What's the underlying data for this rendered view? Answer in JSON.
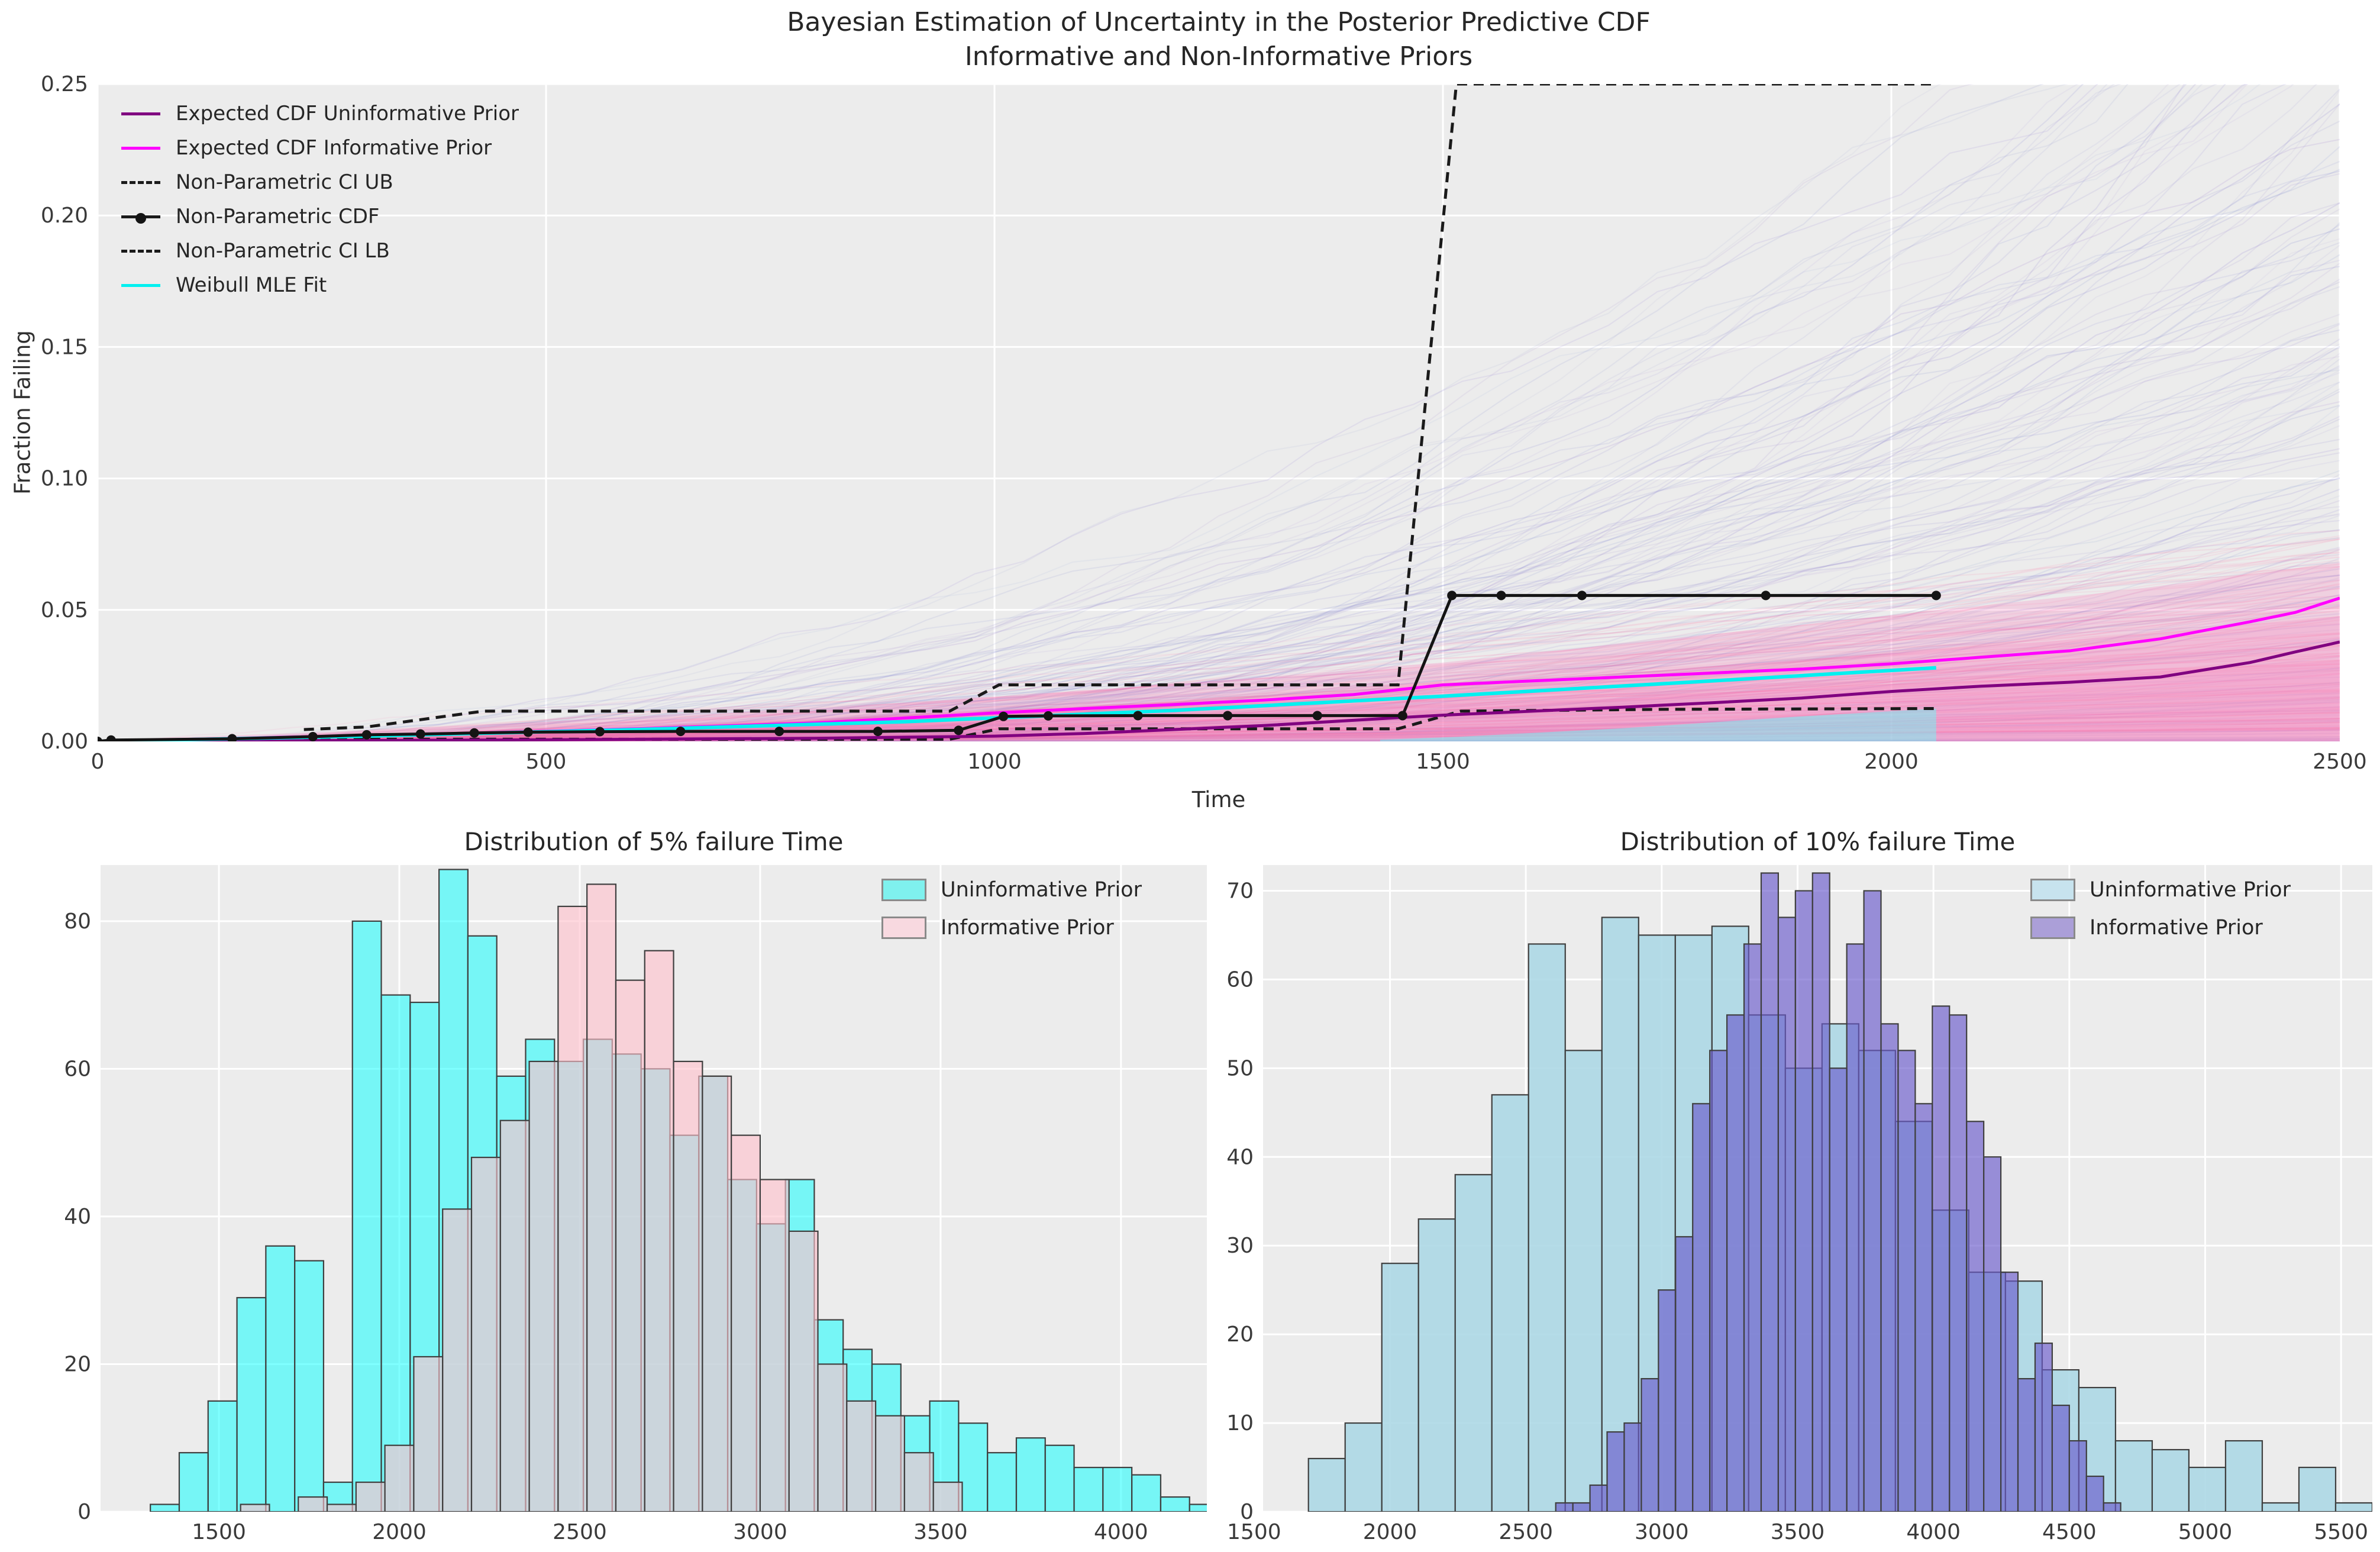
{
  "figure": {
    "background": "#ffffff",
    "axes_background": "#ececec",
    "grid_color": "#ffffff",
    "tick_color": "#3a3a3a",
    "text_color": "#262626"
  },
  "chart_data": [
    {
      "type": "line",
      "title_line1": "Bayesian Estimation of Uncertainty in the Posterior Predictive CDF",
      "title_line2": "Informative and Non-Informative Priors",
      "xlabel": "Time",
      "ylabel": "Fraction Failing",
      "xlim": [
        0,
        2500
      ],
      "ylim": [
        0,
        0.25
      ],
      "xticks": [
        0,
        500,
        1000,
        1500,
        2000,
        2500
      ],
      "yticks": [
        0,
        0.05,
        0.1,
        0.15,
        0.2,
        0.25
      ],
      "ytick_labels": [
        "0.00",
        "0.05",
        "0.10",
        "0.15",
        "0.20",
        "0.25"
      ],
      "grid": true,
      "legend_position": "upper left",
      "legend": [
        {
          "label": "Expected CDF Uninformative Prior",
          "color": "#800080",
          "line": "solid",
          "marker": false
        },
        {
          "label": "Expected CDF Informative Prior",
          "color": "#ff00ff",
          "line": "solid",
          "marker": false
        },
        {
          "label": "Non-Parametric CI UB",
          "color": "#1a1a1a",
          "line": "dashed",
          "marker": false
        },
        {
          "label": "Non-Parametric CDF",
          "color": "#1a1a1a",
          "line": "solid",
          "marker": true
        },
        {
          "label": "Non-Parametric CI LB",
          "color": "#1a1a1a",
          "line": "dashed",
          "marker": false
        },
        {
          "label": "Weibull MLE Fit",
          "color": "#00f0f0",
          "line": "solid",
          "marker": false
        }
      ],
      "series": [
        {
          "name": "Expected CDF Uninformative Prior",
          "color": "#800080",
          "width": 5,
          "points": [
            [
              0,
              0
            ],
            [
              500,
              0.0006
            ],
            [
              800,
              0.0012
            ],
            [
              1000,
              0.002
            ],
            [
              1100,
              0.003
            ],
            [
              1200,
              0.0045
            ],
            [
              1300,
              0.006
            ],
            [
              1400,
              0.008
            ],
            [
              1500,
              0.01
            ],
            [
              1600,
              0.0115
            ],
            [
              1700,
              0.013
            ],
            [
              1800,
              0.0147
            ],
            [
              1900,
              0.0165
            ],
            [
              2000,
              0.019
            ],
            [
              2100,
              0.021
            ],
            [
              2200,
              0.0225
            ],
            [
              2300,
              0.0245
            ],
            [
              2400,
              0.03
            ],
            [
              2450,
              0.034
            ],
            [
              2500,
              0.0378
            ]
          ]
        },
        {
          "name": "Expected CDF Informative Prior",
          "color": "#ff00ff",
          "width": 5,
          "points": [
            [
              0,
              0
            ],
            [
              200,
              0.0015
            ],
            [
              400,
              0.003
            ],
            [
              600,
              0.0048
            ],
            [
              800,
              0.007
            ],
            [
              1000,
              0.0108
            ],
            [
              1100,
              0.0125
            ],
            [
              1200,
              0.014
            ],
            [
              1300,
              0.0157
            ],
            [
              1400,
              0.0178
            ],
            [
              1500,
              0.0215
            ],
            [
              1600,
              0.023
            ],
            [
              1700,
              0.0245
            ],
            [
              1800,
              0.026
            ],
            [
              1900,
              0.0275
            ],
            [
              2000,
              0.0295
            ],
            [
              2100,
              0.032
            ],
            [
              2200,
              0.0345
            ],
            [
              2300,
              0.039
            ],
            [
              2400,
              0.0455
            ],
            [
              2450,
              0.049
            ],
            [
              2500,
              0.0545
            ]
          ]
        },
        {
          "name": "Weibull MLE Fit",
          "color": "#00f0f0",
          "width": 6,
          "points": [
            [
              0,
              0
            ],
            [
              300,
              0.002
            ],
            [
              600,
              0.0045
            ],
            [
              900,
              0.0075
            ],
            [
              1200,
              0.0118
            ],
            [
              1500,
              0.0172
            ],
            [
              1800,
              0.023
            ],
            [
              2050,
              0.028
            ]
          ]
        }
      ],
      "np_cdf": {
        "name": "Non-Parametric CDF",
        "color": "#141414",
        "width": 5,
        "marker_radius": 8,
        "points": [
          [
            0,
            0
          ],
          [
            15,
            0.0005
          ],
          [
            150,
            0.001
          ],
          [
            240,
            0.0018
          ],
          [
            300,
            0.0025
          ],
          [
            360,
            0.0028
          ],
          [
            420,
            0.0032
          ],
          [
            480,
            0.0035
          ],
          [
            560,
            0.0037
          ],
          [
            650,
            0.0038
          ],
          [
            760,
            0.0038
          ],
          [
            870,
            0.0038
          ],
          [
            960,
            0.0042
          ],
          [
            1010,
            0.0095
          ],
          [
            1060,
            0.0097
          ],
          [
            1160,
            0.0098
          ],
          [
            1260,
            0.0098
          ],
          [
            1360,
            0.0098
          ],
          [
            1455,
            0.0098
          ],
          [
            1510,
            0.0555
          ],
          [
            1565,
            0.0555
          ],
          [
            1655,
            0.0555
          ],
          [
            1860,
            0.0555
          ],
          [
            2050,
            0.0555
          ]
        ]
      },
      "ci_ub": {
        "name": "Non-Parametric CI UB",
        "color": "#1a1a1a",
        "width": 5,
        "dash": "17 11",
        "points": [
          [
            230,
            0.0045
          ],
          [
            300,
            0.0055
          ],
          [
            430,
            0.0115
          ],
          [
            950,
            0.0115
          ],
          [
            1005,
            0.0215
          ],
          [
            1450,
            0.0215
          ],
          [
            1515,
            0.25
          ],
          [
            2050,
            0.25
          ]
        ]
      },
      "ci_lb": {
        "name": "Non-Parametric CI LB",
        "color": "#1a1a1a",
        "width": 5,
        "dash": "17 11",
        "points": [
          [
            230,
            0.0008
          ],
          [
            950,
            0.0008
          ],
          [
            1005,
            0.0048
          ],
          [
            1450,
            0.0048
          ],
          [
            1520,
            0.0115
          ],
          [
            1750,
            0.0122
          ],
          [
            2050,
            0.0125
          ]
        ]
      },
      "pink_band": {
        "color": "rgba(247,128,190,0.26)",
        "levels": [
          1,
          0.7,
          0.45
        ],
        "top": [
          [
            0,
            0.0005
          ],
          [
            250,
            0.0035
          ],
          [
            500,
            0.0075
          ],
          [
            750,
            0.0115
          ],
          [
            1000,
            0.017
          ],
          [
            1250,
            0.023
          ],
          [
            1500,
            0.03
          ],
          [
            1750,
            0.039
          ],
          [
            2000,
            0.048
          ],
          [
            2250,
            0.057
          ],
          [
            2500,
            0.068
          ]
        ]
      },
      "cyan_band": {
        "color": "rgba(110,245,245,0.5)",
        "poly": [
          [
            1430,
            0.0006
          ],
          [
            1520,
            0.0018
          ],
          [
            1700,
            0.005
          ],
          [
            1900,
            0.0095
          ],
          [
            2050,
            0.0125
          ],
          [
            2050,
            0
          ],
          [
            1430,
            0
          ]
        ]
      },
      "samples": {
        "seed": 7,
        "uninformative": {
          "count": 185,
          "final_max": 0.34,
          "final_shape": 1.9,
          "k_min": 1.5,
          "k_max": 3.1,
          "t0_min": 60,
          "t0_max": 420,
          "rgb_base": [
            105,
            98,
            205
          ],
          "alpha_min": 0.06,
          "alpha_max": 0.14
        },
        "informative": {
          "count": 115,
          "final_base": 0.004,
          "final_spread": 0.075,
          "final_shape": 1.25,
          "k_min": 1.05,
          "k_max": 2.1,
          "t0_min": 0,
          "t0_max": 220,
          "rgb_base": [
            250,
            92,
            168
          ],
          "alpha_min": 0.06,
          "alpha_max": 0.13
        }
      }
    },
    {
      "type": "bar",
      "variant": "histogram",
      "title": "Distribution of 5% failure Time",
      "xlim": [
        1172,
        4238
      ],
      "ylim": [
        0,
        87.6
      ],
      "xticks": [
        1500,
        2000,
        2500,
        3000,
        3500,
        4000
      ],
      "yticks": [
        0,
        20,
        40,
        60,
        80
      ],
      "grid": true,
      "legend_position": "upper right",
      "legend": [
        {
          "label": "Uninformative Prior",
          "swatch": "#7ff1ee"
        },
        {
          "label": "Informative Prior",
          "swatch": "#f8d9e0"
        }
      ],
      "series": [
        {
          "name": "Uninformative Prior",
          "bin_start": 1310,
          "bin_width": 80,
          "counts": [
            1,
            8,
            15,
            29,
            36,
            34,
            4,
            80,
            70,
            69,
            87,
            78,
            59,
            64,
            61,
            64,
            62,
            60,
            51,
            59,
            45,
            39,
            45,
            26,
            22,
            20,
            13,
            15,
            12,
            8,
            10,
            9,
            6,
            6,
            5,
            2,
            1
          ],
          "fill": "rgba(0,255,255,0.5)",
          "edge": "#3f3f3f"
        },
        {
          "name": "Informative Prior",
          "bin_start": 1560,
          "bin_width": 80,
          "counts": [
            1,
            0,
            2,
            1,
            4,
            9,
            21,
            41,
            48,
            53,
            61,
            82,
            85,
            72,
            76,
            61,
            59,
            51,
            45,
            38,
            20,
            15,
            13,
            8,
            4
          ],
          "fill": "rgba(255,192,203,0.62)",
          "edge": "#3f3f3f"
        }
      ]
    },
    {
      "type": "bar",
      "variant": "histogram",
      "title": "Distribution of 10% failure Time",
      "xlim": [
        1533,
        5615
      ],
      "ylim": [
        0,
        72.9
      ],
      "xticks": [
        1500,
        2000,
        2500,
        3000,
        3500,
        4000,
        4500,
        5000,
        5500
      ],
      "yticks": [
        0,
        10,
        20,
        30,
        40,
        50,
        60,
        70
      ],
      "grid": true,
      "legend_position": "upper right",
      "legend": [
        {
          "label": "Uninformative Prior",
          "swatch": "#c7e3ee"
        },
        {
          "label": "Informative Prior",
          "swatch": "#ab9fd8"
        }
      ],
      "series": [
        {
          "name": "Uninformative Prior",
          "bin_start": 1700,
          "bin_width": 135,
          "counts": [
            6,
            10,
            28,
            33,
            38,
            47,
            64,
            52,
            67,
            65,
            65,
            66,
            56,
            50,
            55,
            52,
            44,
            34,
            27,
            26,
            16,
            14,
            8,
            7,
            5,
            8,
            1,
            5,
            1
          ],
          "fill": "rgba(173,216,230,0.9)",
          "edge": "#3f3f3f"
        },
        {
          "name": "Informative Prior",
          "bin_start": 2610,
          "bin_width": 63,
          "counts": [
            1,
            1,
            3,
            9,
            10,
            15,
            25,
            31,
            46,
            52,
            56,
            64,
            72,
            67,
            70,
            72,
            50,
            64,
            70,
            55,
            52,
            46,
            57,
            56,
            44,
            40,
            27,
            15,
            19,
            12,
            8,
            4,
            1
          ],
          "fill": "rgba(106,90,205,0.65)",
          "edge": "#3f3f3f"
        }
      ]
    }
  ]
}
